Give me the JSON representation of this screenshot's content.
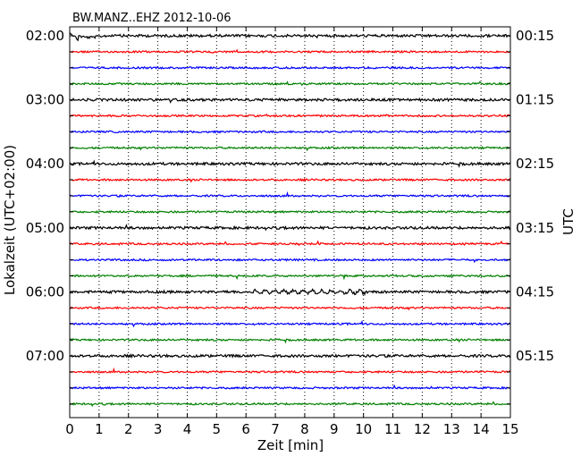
{
  "chart_data": {
    "type": "line",
    "title": "BW.MANZ..EHZ 2012-10-06",
    "xlabel": "Zeit  [min]",
    "ylabel_left": "Lokalzeit (UTC+02:00)",
    "ylabel_right": "UTC",
    "xlim": [
      0,
      15
    ],
    "x_ticks": [
      0,
      1,
      2,
      3,
      4,
      5,
      6,
      7,
      8,
      9,
      10,
      11,
      12,
      13,
      14,
      15
    ],
    "x_tick_labels": [
      "0",
      "1",
      "2",
      "3",
      "4",
      "5",
      "6",
      "7",
      "8",
      "9",
      "10",
      "11",
      "12",
      "13",
      "14",
      "15"
    ],
    "grid": "vertical dotted",
    "left_tick_labels": [
      "02:00",
      "03:00",
      "04:00",
      "05:00",
      "06:00",
      "07:00"
    ],
    "right_tick_labels": [
      "00:15",
      "01:15",
      "02:15",
      "03:15",
      "04:15",
      "05:15"
    ],
    "trace_colors": [
      "#000000",
      "#ff0000",
      "#0000ff",
      "#008000"
    ],
    "trace_count": 24,
    "traces_per_hour": 4
  }
}
